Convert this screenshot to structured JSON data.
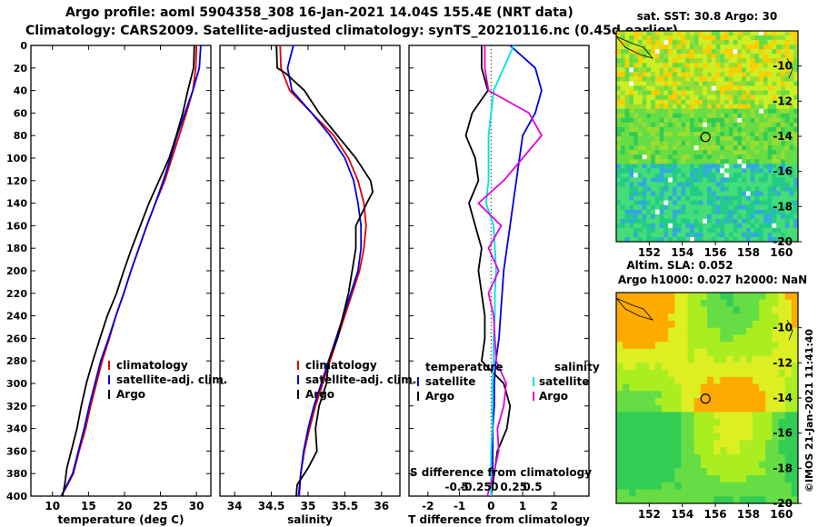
{
  "titles": {
    "line1": "Argo profile: aoml 5904358_308 16-Jan-2021 14.04S 155.4E (NRT data)",
    "line2": "Climatology: CARS2009. Satellite-adjusted climatology: synTS_20210116.nc (0.45d earlier)"
  },
  "colors": {
    "climatology": "#e00000",
    "satellite": "#0000e0",
    "argo": "#000000",
    "sal_sat": "#00e0e0",
    "sal_argo": "#e000e0"
  },
  "chart_data": [
    {
      "type": "line",
      "id": "temperature",
      "xlabel": "temperature (deg C)",
      "ylabel": "",
      "xlim": [
        7,
        32
      ],
      "ylim": [
        400,
        0
      ],
      "x_ticks": [
        "10",
        "15",
        "20",
        "25",
        "30"
      ],
      "y_ticks": [
        "0",
        "20",
        "40",
        "60",
        "80",
        "100",
        "120",
        "140",
        "160",
        "180",
        "200",
        "220",
        "240",
        "260",
        "280",
        "300",
        "320",
        "340",
        "360",
        "380",
        "400"
      ],
      "legend": [
        "climatology",
        "satellite-adj. clim.",
        "Argo"
      ],
      "series": [
        {
          "name": "climatology",
          "color": "#e00000",
          "x": [
            30.0,
            29.9,
            29.5,
            28.6,
            27.6,
            26.6,
            25.6,
            24.3,
            23.1,
            22.0,
            20.9,
            19.9,
            18.8,
            17.9,
            16.9,
            16.1,
            15.3,
            14.6,
            13.7,
            12.9,
            12.1,
            11.2
          ],
          "y": [
            0,
            20,
            40,
            60,
            80,
            100,
            120,
            140,
            160,
            180,
            200,
            220,
            240,
            260,
            280,
            300,
            320,
            340,
            360,
            380,
            390,
            400
          ]
        },
        {
          "name": "satellite-adj. clim.",
          "color": "#0000e0",
          "x": [
            30.6,
            30.4,
            29.5,
            28.4,
            27.3,
            26.4,
            25.4,
            24.3,
            23.1,
            22.0,
            20.9,
            19.9,
            18.8,
            17.8,
            16.7,
            15.9,
            15.1,
            14.4,
            13.6,
            12.8,
            12.0,
            11.2
          ],
          "y": [
            0,
            20,
            40,
            60,
            80,
            100,
            120,
            140,
            160,
            180,
            200,
            220,
            240,
            260,
            280,
            300,
            320,
            340,
            360,
            380,
            390,
            400
          ]
        },
        {
          "name": "Argo",
          "color": "#000000",
          "x": [
            29.7,
            29.6,
            29.4,
            28.8,
            28.1,
            27.2,
            26.2,
            24.8,
            23.4,
            22.2,
            21.0,
            19.9,
            18.9,
            17.6,
            16.6,
            15.6,
            14.7,
            14.0,
            13.4,
            12.6,
            12.0,
            11.7,
            11.4
          ],
          "y": [
            0,
            20,
            25,
            40,
            60,
            80,
            100,
            120,
            140,
            160,
            180,
            200,
            220,
            240,
            260,
            280,
            300,
            320,
            340,
            360,
            375,
            390,
            400
          ]
        }
      ]
    },
    {
      "type": "line",
      "id": "salinity",
      "xlabel": "salinity",
      "ylabel": "",
      "xlim": [
        33.8,
        36.25
      ],
      "ylim": [
        400,
        0
      ],
      "x_ticks": [
        "34",
        "34.5",
        "35",
        "35.5",
        "36"
      ],
      "legend": [
        "climatology",
        "satellite-adj. clim.",
        "Argo"
      ],
      "series": [
        {
          "name": "climatology",
          "color": "#e00000",
          "x": [
            34.62,
            34.63,
            34.75,
            35.05,
            35.35,
            35.55,
            35.68,
            35.76,
            35.79,
            35.76,
            35.7,
            35.6,
            35.5,
            35.4,
            35.3,
            35.2,
            35.1,
            35.02,
            34.95,
            34.9,
            34.88
          ],
          "y": [
            0,
            20,
            40,
            60,
            80,
            100,
            120,
            140,
            160,
            180,
            200,
            220,
            240,
            260,
            280,
            300,
            320,
            340,
            360,
            380,
            400
          ]
        },
        {
          "name": "satellite-adj. clim.",
          "color": "#0000e0",
          "x": [
            34.8,
            34.72,
            34.78,
            35.05,
            35.3,
            35.5,
            35.62,
            35.68,
            35.72,
            35.72,
            35.68,
            35.58,
            35.48,
            35.38,
            35.28,
            35.18,
            35.08,
            35.0,
            34.94,
            34.9,
            34.87
          ],
          "y": [
            0,
            20,
            40,
            60,
            80,
            100,
            120,
            140,
            160,
            180,
            200,
            220,
            240,
            260,
            280,
            300,
            320,
            340,
            360,
            380,
            400
          ]
        },
        {
          "name": "Argo",
          "color": "#000000",
          "x": [
            34.57,
            34.58,
            34.7,
            34.95,
            35.15,
            35.4,
            35.65,
            35.85,
            35.88,
            35.8,
            35.65,
            35.65,
            35.6,
            35.55,
            35.4,
            35.28,
            35.25,
            35.15,
            35.1,
            35.12,
            35.0,
            34.85,
            34.84
          ],
          "y": [
            0,
            20,
            25,
            40,
            60,
            80,
            100,
            120,
            130,
            140,
            160,
            180,
            200,
            220,
            260,
            280,
            300,
            320,
            340,
            360,
            375,
            390,
            400
          ]
        }
      ]
    },
    {
      "type": "line",
      "id": "differences",
      "xlabel": "T difference from climatology",
      "top_xlabel": "S difference from climatology",
      "xlim": [
        -2.6,
        3.1
      ],
      "ylim": [
        400,
        0
      ],
      "x_ticks": [
        "-2",
        "-1",
        "0",
        "1",
        "2"
      ],
      "top_x_ticks": [
        "-0.5",
        "-0.25",
        "0",
        "0.25",
        "0.5"
      ],
      "legend_temperature": {
        "title": "temperature",
        "items": [
          "satellite",
          "Argo"
        ]
      },
      "legend_salinity": {
        "title": "salinity",
        "items": [
          "satellite",
          "Argo"
        ]
      },
      "series": [
        {
          "name": "temperature satellite",
          "color": "#0000e0",
          "x": [
            0.6,
            1.4,
            1.6,
            1.4,
            1.0,
            0.9,
            0.8,
            0.7,
            0.6,
            0.5,
            0.4,
            0.35,
            0.3,
            0.25,
            0.15,
            0.1,
            0.1,
            0.05,
            0.05,
            0.05,
            0.0
          ],
          "y": [
            0,
            20,
            40,
            60,
            80,
            100,
            120,
            140,
            160,
            180,
            200,
            220,
            240,
            260,
            280,
            300,
            320,
            340,
            360,
            380,
            400
          ]
        },
        {
          "name": "temperature Argo",
          "color": "#000000",
          "x": [
            -0.3,
            -0.3,
            -0.1,
            -0.6,
            -0.8,
            -0.5,
            -0.4,
            -0.7,
            -0.5,
            -0.3,
            -0.4,
            -0.3,
            -0.2,
            -0.2,
            -0.3,
            0.4,
            0.6,
            0.5,
            0.2,
            0.1,
            0.0
          ],
          "y": [
            0,
            20,
            40,
            60,
            80,
            100,
            120,
            140,
            160,
            180,
            200,
            220,
            240,
            260,
            280,
            300,
            320,
            340,
            360,
            380,
            400
          ]
        },
        {
          "name": "salinity satellite",
          "color": "#00e0e0",
          "x": [
            0.18,
            0.1,
            0.02,
            0.0,
            -0.02,
            -0.02,
            -0.02,
            -0.04,
            0.02,
            0.03,
            0.04,
            0.03,
            0.03,
            0.02,
            0.02,
            0.01,
            0.01,
            0.01,
            0.0,
            0.0,
            0.0
          ],
          "y": [
            0,
            20,
            40,
            60,
            80,
            100,
            120,
            140,
            160,
            180,
            200,
            220,
            240,
            260,
            280,
            300,
            320,
            340,
            360,
            380,
            400
          ]
        },
        {
          "name": "salinity Argo",
          "color": "#e000e0",
          "x": [
            -0.05,
            -0.05,
            -0.02,
            0.3,
            0.4,
            0.25,
            0.1,
            -0.1,
            0.08,
            -0.02,
            0.06,
            -0.02,
            0.02,
            0.03,
            0.04,
            0.12,
            0.1,
            0.05,
            0.06,
            0.02,
            -0.03
          ],
          "y": [
            0,
            20,
            40,
            60,
            80,
            100,
            120,
            140,
            160,
            180,
            200,
            220,
            240,
            260,
            280,
            300,
            320,
            340,
            360,
            380,
            400
          ]
        }
      ]
    },
    {
      "type": "heatmap",
      "id": "sst-map",
      "title": "sat. SST: 30.8 Argo: 30",
      "x_ticks": [
        "152",
        "154",
        "156",
        "158",
        "160"
      ],
      "y_ticks": [
        "-10",
        "-12",
        "-14",
        "-16",
        "-18",
        "-20"
      ],
      "xlim": [
        150,
        161
      ],
      "ylim": [
        -20,
        -8
      ]
    },
    {
      "type": "heatmap",
      "id": "sla-map",
      "title": "Altim. SLA: 0.052",
      "subtitle": "Argo h1000: 0.027 h2000: NaN",
      "x_ticks": [
        "152",
        "154",
        "156",
        "158",
        "160"
      ],
      "y_ticks": [
        "-10",
        "-12",
        "-14",
        "-16",
        "-18",
        "-20"
      ],
      "xlim": [
        150,
        161
      ],
      "ylim": [
        -20,
        -8
      ]
    }
  ],
  "credit": "©IMOS 21-Jan-2021 11:41:40"
}
